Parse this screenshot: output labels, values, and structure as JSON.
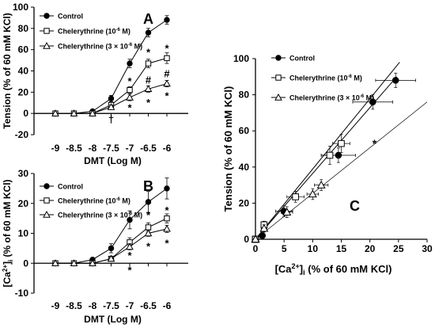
{
  "chart_data": [
    {
      "panel": "A",
      "type": "line",
      "ylabel": "Tension (% of 60 mM KCl)",
      "xlabel": "DMT (Log M)",
      "ylim": [
        -20,
        100
      ],
      "yticks": [
        "-20",
        "0",
        "20",
        "40",
        "60",
        "80",
        "100"
      ],
      "x": [
        -9,
        -8.5,
        -8,
        -7.5,
        -7,
        -6.5,
        -6
      ],
      "xticks": [
        "-9",
        "-8.5",
        "-8",
        "-7.5",
        "-7",
        "-6.5",
        "-6"
      ],
      "legend": {
        "placement": "top-left",
        "items": [
          {
            "label": "Control",
            "marker": "filled-circle"
          },
          {
            "label": "Chelerythrine (10",
            "sup": "-6",
            "post": " M)",
            "marker": "open-square"
          },
          {
            "label": "Chelerythrine (3 × 10",
            "sup": "-6",
            "post": " M)",
            "marker": "open-triangle"
          }
        ]
      },
      "series": [
        {
          "name": "Control",
          "values": [
            0,
            0,
            2,
            14,
            47,
            76,
            88
          ],
          "err": [
            0,
            0,
            1,
            3,
            4,
            4,
            4
          ]
        },
        {
          "name": "Chelerythrine (10-6 M)",
          "values": [
            0,
            0,
            0,
            8,
            22,
            47,
            52
          ],
          "err": [
            0,
            0,
            0,
            2,
            3,
            4,
            5
          ]
        },
        {
          "name": "Chelerythrine (3 × 10-6 M)",
          "values": [
            0,
            0,
            0,
            6,
            15,
            23,
            28
          ],
          "err": [
            0,
            0,
            0,
            2,
            3,
            3,
            3
          ]
        }
      ],
      "annotations": [
        {
          "text": "†",
          "x": -7.5,
          "y": -6
        },
        {
          "text": "*",
          "x": -7,
          "y": 30
        },
        {
          "text": "*",
          "x": -7,
          "y": 5
        },
        {
          "text": "*",
          "x": -6.5,
          "y": 57
        },
        {
          "text": "#",
          "x": -6.5,
          "y": 31
        },
        {
          "text": "*",
          "x": -6.5,
          "y": 10
        },
        {
          "text": "*",
          "x": -6,
          "y": 61
        },
        {
          "text": "#",
          "x": -6,
          "y": 37
        },
        {
          "text": "*",
          "x": -6,
          "y": 16
        }
      ]
    },
    {
      "panel": "B",
      "type": "line",
      "ylabel_pre": "[Ca",
      "ylabel_sup": "2+",
      "ylabel_mid": "]",
      "ylabel_sub": "i",
      "ylabel_post": " (% of 60 mM KCl)",
      "xlabel": "DMT (Log M)",
      "ylim": [
        -10,
        30
      ],
      "yticks": [
        "-10",
        "0",
        "10",
        "20",
        "30"
      ],
      "x": [
        -9,
        -8.5,
        -8,
        -7.5,
        -7,
        -6.5,
        -6
      ],
      "xticks": [
        "-9",
        "-8.5",
        "-8",
        "-7.5",
        "-7",
        "-6.5",
        "-6"
      ],
      "legend": {
        "placement": "top-left",
        "items": [
          {
            "label": "Control",
            "marker": "filled-circle"
          },
          {
            "label": "Chelerythrine (10",
            "sup": "-6",
            "post": " M)",
            "marker": "open-square"
          },
          {
            "label": "Chelerythrine (3 × 10",
            "sup": "-6",
            "post": " M)",
            "marker": "open-triangle"
          }
        ]
      },
      "series": [
        {
          "name": "Control",
          "values": [
            0,
            0,
            1.2,
            5,
            14.5,
            20.5,
            25
          ],
          "err": [
            0,
            0,
            0.5,
            1.5,
            3,
            3.5,
            3.5
          ]
        },
        {
          "name": "Chelerythrine (10-6 M)",
          "values": [
            0,
            0,
            0,
            1.5,
            7,
            12,
            15
          ],
          "err": [
            0,
            0,
            0,
            0.5,
            1.5,
            1.5,
            1.5
          ]
        },
        {
          "name": "Chelerythrine (3 × 10-6 M)",
          "values": [
            0,
            0,
            0,
            1.5,
            5.5,
            10,
            11.5
          ],
          "err": [
            0,
            0,
            0,
            0.5,
            1,
            1,
            1.2
          ]
        }
      ],
      "annotations": [
        {
          "text": "*",
          "x": -7,
          "y": 2.5
        },
        {
          "text": "*",
          "x": -7,
          "y": -2.5
        },
        {
          "text": "*",
          "x": -6.5,
          "y": 16
        },
        {
          "text": "*",
          "x": -6.5,
          "y": 5.5
        },
        {
          "text": "*",
          "x": -6,
          "y": 17.5
        },
        {
          "text": "*",
          "x": -6,
          "y": 6.5
        }
      ]
    },
    {
      "panel": "C",
      "type": "scatter",
      "ylabel": "Tension (% of 60 mM KCl)",
      "xlabel_pre": "[Ca",
      "xlabel_sup": "2+",
      "xlabel_mid": "]",
      "xlabel_sub": "i",
      "xlabel_post": " (% of 60 mM KCl)",
      "xlim": [
        0,
        30
      ],
      "ylim": [
        0,
        100
      ],
      "xticks": [
        "0",
        "5",
        "10",
        "15",
        "20",
        "25",
        "30"
      ],
      "yticks": [
        "0",
        "20",
        "40",
        "60",
        "80",
        "100"
      ],
      "legend": {
        "placement": "top-left",
        "items": [
          {
            "label": "Control",
            "marker": "filled-circle"
          },
          {
            "label": "Chelerythrine (10",
            "sup": "-6",
            "post": " M)",
            "marker": "open-square"
          },
          {
            "label": "Chelerythrine (3 × 10",
            "sup": "-6",
            "post": " M)",
            "marker": "open-triangle"
          }
        ]
      },
      "series": [
        {
          "name": "Control",
          "points": [
            [
              0,
              0
            ],
            [
              0,
              0
            ],
            [
              1.2,
              2
            ],
            [
              5,
              15.5
            ],
            [
              14.5,
              46.5
            ],
            [
              20.5,
              76
            ],
            [
              24.5,
              88
            ]
          ],
          "xerr": [
            0,
            0,
            0.5,
            1.5,
            3,
            3.5,
            3.5
          ],
          "yerr": [
            0,
            0,
            1,
            3,
            4,
            4,
            4
          ],
          "fit": [
            [
              0,
              0
            ],
            [
              24.7,
              90
            ]
          ]
        },
        {
          "name": "Chelerythrine (10-6 M)",
          "points": [
            [
              0,
              0
            ],
            [
              0,
              0
            ],
            [
              0,
              0
            ],
            [
              1.5,
              8
            ],
            [
              7,
              23.5
            ],
            [
              13,
              46.5
            ],
            [
              15,
              53
            ]
          ],
          "xerr": [
            0,
            0,
            0,
            0.5,
            1.5,
            1.5,
            1.5
          ],
          "yerr": [
            0,
            0,
            0,
            2,
            3,
            5,
            5
          ],
          "fit": [
            [
              0,
              0
            ],
            [
              25.2,
              98
            ]
          ]
        },
        {
          "name": "Chelerythrine (3 × 10-6 M)",
          "points": [
            [
              0,
              0
            ],
            [
              0,
              0
            ],
            [
              0,
              0
            ],
            [
              1.5,
              6
            ],
            [
              5.5,
              15
            ],
            [
              10,
              25
            ],
            [
              11.5,
              30
            ]
          ],
          "xerr": [
            0,
            0,
            0,
            0.5,
            1,
            1,
            1.2
          ],
          "yerr": [
            0,
            0,
            0,
            2,
            3,
            3,
            3
          ],
          "fit": [
            [
              0,
              0
            ],
            [
              30,
              76
            ]
          ]
        }
      ],
      "annotations": [
        {
          "text": "*",
          "x": 20.8,
          "y": 53
        }
      ]
    }
  ]
}
